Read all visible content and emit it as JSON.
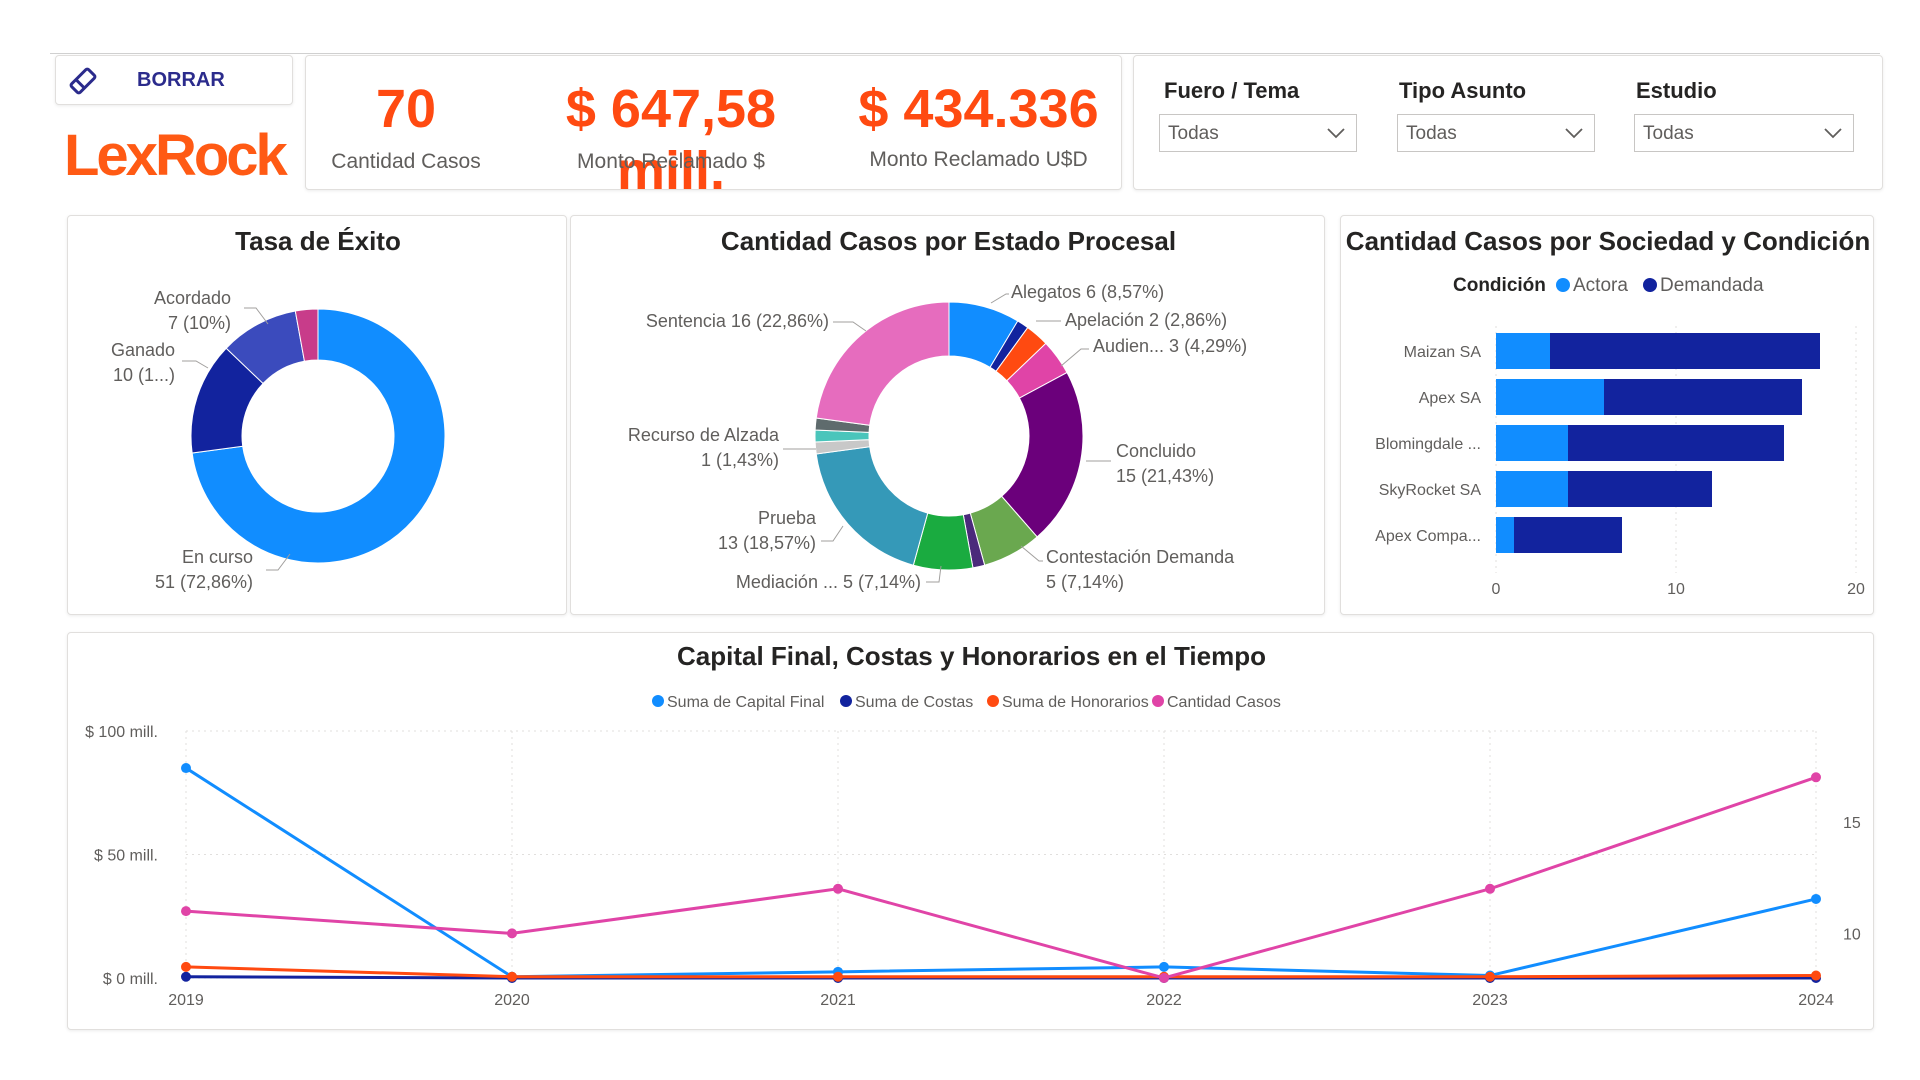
{
  "header": {
    "clear_button": "BORRAR",
    "logo": "LexRock",
    "kpis": [
      {
        "value": "70",
        "label": "Cantidad Casos"
      },
      {
        "value": "$ 647,58 mill.",
        "label": "Monto Reclamado $"
      },
      {
        "value": "$ 434.336",
        "label": "Monto Reclamado U$D"
      }
    ],
    "slicers": [
      {
        "title": "Fuero / Tema",
        "value": "Todas"
      },
      {
        "title": "Tipo Asunto",
        "value": "Todas"
      },
      {
        "title": "Estudio",
        "value": "Todas"
      }
    ]
  },
  "colors": {
    "accent": "#ff4a11",
    "actora": "#118dff",
    "demandada": "#12239e",
    "honorarios": "#e66c37",
    "cantidad": "#e044a7"
  },
  "chart_data": [
    {
      "type": "pie",
      "title": "Tasa de Éxito",
      "slices": [
        {
          "label": "En curso",
          "value": 51,
          "text": "51 (72,86%)",
          "color": "#118dff"
        },
        {
          "label": "Ganado",
          "value": 10,
          "text": "10 (1...)",
          "color": "#12239e"
        },
        {
          "label": "Acordado",
          "value": 7,
          "text": "7 (10%)",
          "color": "#3b4bbd"
        },
        {
          "label": "",
          "value": 2,
          "text": "",
          "color": "#c83c8a"
        }
      ]
    },
    {
      "type": "pie",
      "title": "Cantidad Casos por Estado Procesal",
      "slices": [
        {
          "label": "Alegatos",
          "value": 6,
          "text": "Alegatos 6 (8,57%)",
          "color": "#118dff"
        },
        {
          "label": "",
          "value": 1,
          "text": "",
          "color": "#12239e"
        },
        {
          "label": "Apelación",
          "value": 2,
          "text": "Apelación 2 (2,86%)",
          "color": "#ff4a11"
        },
        {
          "label": "Audien...",
          "value": 3,
          "text": "Audien... 3 (4,29%)",
          "color": "#e044a7"
        },
        {
          "label": "Concluido",
          "value": 15,
          "text": "Concluido 15 (21,43%)",
          "color": "#6b007b"
        },
        {
          "label": "Contestación Demanda",
          "value": 5,
          "text": "Contestación Demanda 5 (7,14%)",
          "color": "#6aa84f"
        },
        {
          "label": "",
          "value": 1,
          "text": "",
          "color": "#4b2a7b"
        },
        {
          "label": "Mediación ...",
          "value": 5,
          "text": "Mediación ... 5 (7,14%)",
          "color": "#1aab40"
        },
        {
          "label": "Prueba",
          "value": 13,
          "text": "Prueba 13 (18,57%)",
          "color": "#3599b8"
        },
        {
          "label": "",
          "value": 1,
          "text": "",
          "color": "#c8c8c8"
        },
        {
          "label": "Recurso de Alzada",
          "value": 1,
          "text": "Recurso de Alzada 1 (1,43%)",
          "color": "#4ac5bb"
        },
        {
          "label": "",
          "value": 1,
          "text": "",
          "color": "#5f6b6d"
        },
        {
          "label": "Sentencia",
          "value": 16,
          "text": "Sentencia 16 (22,86%)",
          "color": "#e66cbe"
        }
      ]
    },
    {
      "type": "bar",
      "title": "Cantidad Casos por Sociedad y Condición",
      "legend_title": "Condición",
      "categories": [
        "Maizan SA",
        "Apex SA",
        "Blomingdale ...",
        "SkyRocket SA",
        "Apex Compa..."
      ],
      "series": [
        {
          "name": "Actora",
          "values": [
            3,
            6,
            4,
            4,
            1
          ]
        },
        {
          "name": "Demandada",
          "values": [
            15,
            11,
            12,
            8,
            6
          ]
        }
      ],
      "xlim": [
        0,
        20
      ],
      "xticks": [
        "0",
        "10",
        "20"
      ]
    },
    {
      "type": "line",
      "title": "Capital Final, Costas y Honorarios en el Tiempo",
      "x": [
        "2019",
        "2020",
        "2021",
        "2022",
        "2023",
        "2024"
      ],
      "y_left_ticks": [
        "$ 100 mill.",
        "$ 50 mill.",
        "$ 0 mill."
      ],
      "y_right_ticks": [
        "15",
        "10"
      ],
      "ylim_left": [
        0,
        100
      ],
      "ylim_right": [
        8,
        18
      ],
      "series": [
        {
          "name": "Suma de Capital Final",
          "axis": "left",
          "values": [
            85,
            0.5,
            2.5,
            4.5,
            1,
            32
          ],
          "color": "#118dff"
        },
        {
          "name": "Suma de Costas",
          "axis": "left",
          "values": [
            0.5,
            0,
            0,
            0,
            0,
            0
          ],
          "color": "#12239e"
        },
        {
          "name": "Suma de Honorarios",
          "axis": "left",
          "values": [
            4.5,
            0.5,
            0.5,
            0.5,
            0.5,
            1
          ],
          "color": "#ff4a11"
        },
        {
          "name": "Cantidad Casos",
          "axis": "right",
          "values": [
            11,
            10,
            12,
            8,
            12,
            17
          ],
          "color": "#e044a7"
        }
      ]
    }
  ]
}
